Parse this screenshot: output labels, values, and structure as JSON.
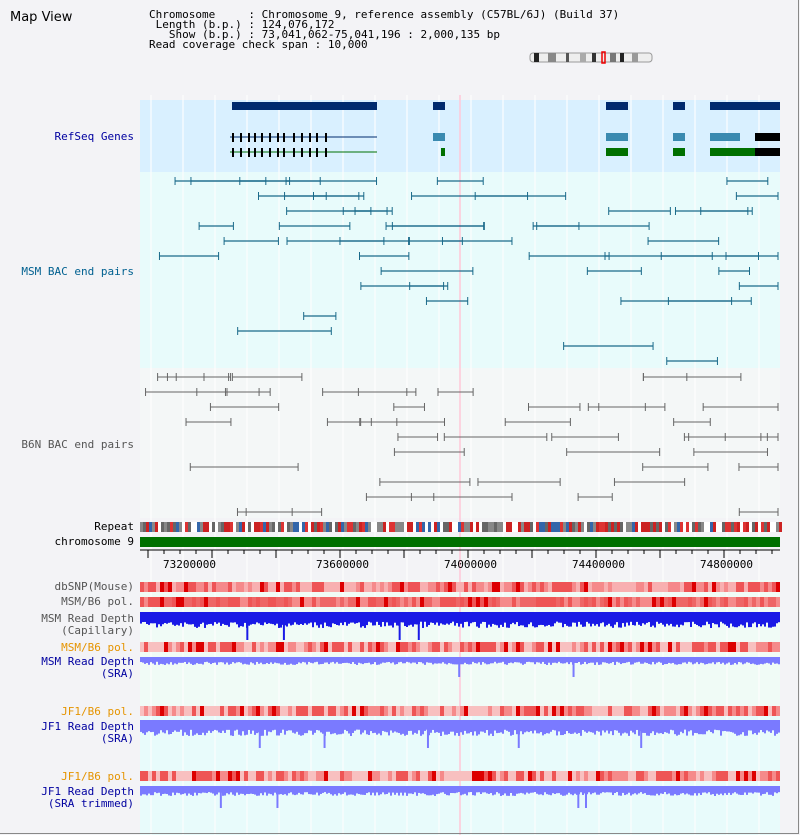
{
  "title": "Map View",
  "info": {
    "chromosome_label": "Chromosome",
    "chromosome_value": "Chromosome 9, reference assembly (C57BL/6J) (Build 37)",
    "length_label": "Length (b.p.)",
    "length_value": "124,076,172",
    "show_label": "Show (b.p.)",
    "show_value": "73,041,062-75,041,196 : 2,000,135 bp",
    "coverage_label": "Read coverage check span",
    "coverage_value": "10,000"
  },
  "tracks": {
    "refseq": "RefSeq Genes",
    "msm_bac": "MSM BAC end pairs",
    "b6n_bac": "B6N BAC end pairs",
    "repeat": "Repeat",
    "chromosome": "chromosome 9",
    "dbsnp": "dbSNP(Mouse)",
    "msm_b6_pol": "MSM/B6 pol.",
    "msm_depth_cap": "MSM Read Depth\n(Capillary)",
    "msm_b6_pol2": "MSM/B6 pol.",
    "msm_depth_sra": "MSM Read Depth\n(SRA)",
    "jf1_b6_pol": "JF1/B6 pol.",
    "jf1_depth_sra": "JF1 Read Depth\n(SRA)",
    "jf1_b6_pol2": "JF1/B6 pol.",
    "jf1_depth_trim": "JF1 Read Depth\n(SRA trimmed)"
  },
  "axis": {
    "ticks": [
      "73200000",
      "73600000",
      "74000000",
      "74400000",
      "74800000"
    ]
  },
  "colors": {
    "refseq_bg": "#d9f0ff",
    "track_bg": "#e8fbfb",
    "gene_dark": "#002a6e",
    "gene_mid": "#3a8ab0",
    "gene_green": "#007000",
    "msm_pair": "#1a6a8a",
    "b6n_pair": "#666666",
    "depth_blue": "#1a1ae6",
    "depth_light": "#7a7aff",
    "snp_red": "#ee5555"
  }
}
